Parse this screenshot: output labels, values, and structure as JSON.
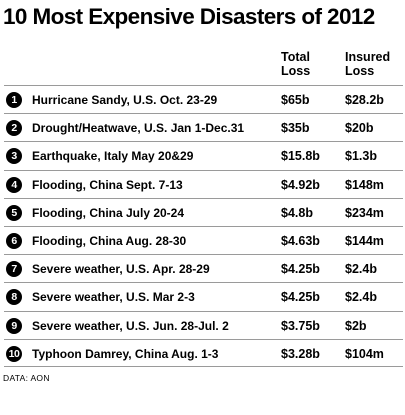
{
  "title": "10 Most Expensive Disasters of 2012",
  "headers": {
    "total_line1": "Total",
    "total_line2": "Loss",
    "insured_line1": "Insured",
    "insured_line2": "Loss"
  },
  "rows": [
    {
      "rank": "1",
      "event": "Hurricane Sandy, U.S. Oct. 23-29",
      "total": "$65b",
      "insured": "$28.2b"
    },
    {
      "rank": "2",
      "event": "Drought/Heatwave, U.S. Jan 1-Dec.31",
      "total": "$35b",
      "insured": "$20b"
    },
    {
      "rank": "3",
      "event": "Earthquake, Italy May 20&29",
      "total": "$15.8b",
      "insured": "$1.3b"
    },
    {
      "rank": "4",
      "event": "Flooding, China Sept. 7-13",
      "total": "$4.92b",
      "insured": "$148m"
    },
    {
      "rank": "5",
      "event": "Flooding, China July 20-24",
      "total": "$4.8b",
      "insured": "$234m"
    },
    {
      "rank": "6",
      "event": "Flooding, China Aug. 28-30",
      "total": "$4.63b",
      "insured": "$144m"
    },
    {
      "rank": "7",
      "event": "Severe weather, U.S. Apr. 28-29",
      "total": "$4.25b",
      "insured": "$2.4b"
    },
    {
      "rank": "8",
      "event": "Severe weather, U.S. Mar 2-3",
      "total": "$4.25b",
      "insured": "$2.4b"
    },
    {
      "rank": "9",
      "event": "Severe weather, U.S. Jun. 28-Jul. 2",
      "total": "$3.75b",
      "insured": "$2b"
    },
    {
      "rank": "10",
      "event": "Typhoon Damrey, China Aug. 1-3",
      "total": "$3.28b",
      "insured": "$104m"
    }
  ],
  "source": "DATA: AON",
  "colors": {
    "text": "#000000",
    "rank_badge": "#000000",
    "rank_badge_text": "#ffffff",
    "divider": "#9a9a9a",
    "background": "#ffffff"
  },
  "chart_data": {
    "type": "table",
    "title": "10 Most Expensive Disasters of 2012",
    "columns": [
      "",
      "Total Loss",
      "Insured Loss"
    ],
    "rows": [
      [
        "Hurricane Sandy, U.S. Oct. 23-29",
        "$65b",
        "$28.2b"
      ],
      [
        "Drought/Heatwave, U.S. Jan 1-Dec.31",
        "$35b",
        "$20b"
      ],
      [
        "Earthquake, Italy May 20&29",
        "$15.8b",
        "$1.3b"
      ],
      [
        "Flooding, China Sept. 7-13",
        "$4.92b",
        "$148m"
      ],
      [
        "Flooding, China July 20-24",
        "$4.8b",
        "$234m"
      ],
      [
        "Flooding, China Aug. 28-30",
        "$4.63b",
        "$144m"
      ],
      [
        "Severe weather, U.S. Apr. 28-29",
        "$4.25b",
        "$2.4b"
      ],
      [
        "Severe weather, U.S. Mar 2-3",
        "$4.25b",
        "$2.4b"
      ],
      [
        "Severe weather, U.S. Jun. 28-Jul. 2",
        "$3.75b",
        "$2b"
      ],
      [
        "Typhoon Damrey, China Aug. 1-3",
        "$3.28b",
        "$104m"
      ]
    ]
  }
}
